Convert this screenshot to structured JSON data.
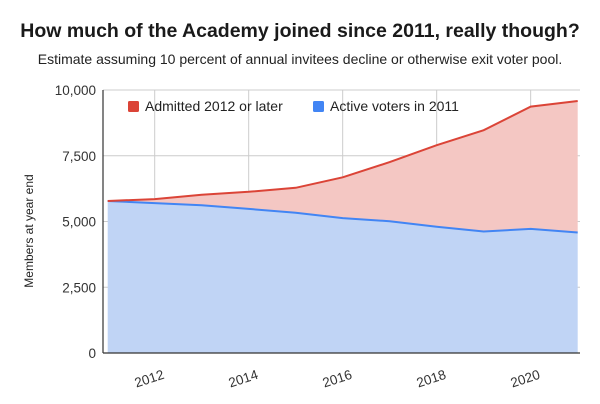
{
  "chart_data": {
    "type": "area",
    "title": "How much of the Academy joined since 2011, really though?",
    "subtitle": "Estimate assuming 10 percent of annual invitees decline or otherwise exit voter pool.",
    "ylabel": "Members at year end",
    "xlabel": "",
    "x": [
      2011,
      2012,
      2013,
      2014,
      2015,
      2016,
      2017,
      2018,
      2019,
      2020,
      2021
    ],
    "xlim": [
      2010.9,
      2021.05
    ],
    "ylim": [
      0,
      10000
    ],
    "xticks": [
      2012,
      2014,
      2016,
      2018,
      2020
    ],
    "xtick_labels": [
      "2012",
      "2014",
      "2016",
      "2018",
      "2020"
    ],
    "yticks": [
      0,
      2500,
      5000,
      7500,
      10000
    ],
    "ytick_labels": [
      "0",
      "2,500",
      "5,000",
      "7,500",
      "10,000"
    ],
    "stacked_totals": true,
    "grid": true,
    "legend_position": "top",
    "series": [
      {
        "name": "Admitted 2012 or later",
        "color": "#db4437",
        "fill": "#f4c7c3",
        "values": [
          0,
          150,
          400,
          650,
          950,
          1550,
          2250,
          3100,
          3850,
          4650,
          5000
        ]
      },
      {
        "name": "Active voters in 2011",
        "color": "#4285f4",
        "fill": "#c0d4f5",
        "values": [
          5780,
          5700,
          5620,
          5480,
          5330,
          5130,
          5010,
          4800,
          4620,
          4720,
          4580
        ]
      }
    ]
  }
}
